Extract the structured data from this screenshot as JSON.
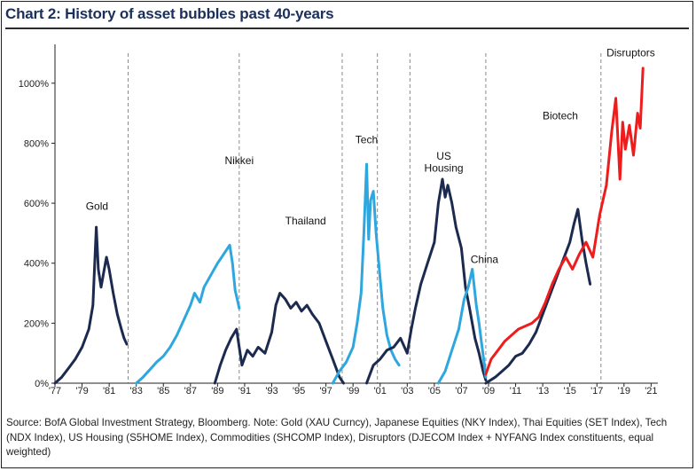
{
  "title": "Chart 2: History of asset bubbles past 40-years",
  "source_text": "Source:   BofA Global Investment Strategy, Bloomberg. Note: Gold (XAU Curncy), Japanese Equities (NKY Index), Thai Equities (SET Index), Tech (NDX Index), US Housing (S5HOME Index), Commodities (SHCOMP Index), Disruptors (DJECOM Index + NYFANG Index constituents, equal weighted)",
  "colors": {
    "dark": "#1b2a4e",
    "light": "#2ea6de",
    "red": "#ee1c1c",
    "title": "#1a2f5a"
  },
  "chart_data": {
    "type": "line",
    "title": "Chart 2: History of asset bubbles past 40-years",
    "xlabel": "",
    "ylabel": "",
    "xlim": [
      1977,
      2021.5
    ],
    "ylim": [
      0,
      1100
    ],
    "grid": false,
    "x_tick_labels": [
      "'77",
      "'79",
      "'81",
      "'83",
      "'85",
      "'87",
      "'89",
      "'91",
      "'93",
      "'95",
      "'97",
      "'99",
      "'01",
      "'03",
      "'05",
      "'07",
      "'09",
      "'11",
      "'13",
      "'15",
      "'17",
      "'19",
      "'21"
    ],
    "x_tick_values": [
      1977,
      1979,
      1981,
      1983,
      1985,
      1987,
      1989,
      1991,
      1993,
      1995,
      1997,
      1999,
      2001,
      2003,
      2005,
      2007,
      2009,
      2011,
      2013,
      2015,
      2017,
      2019,
      2021
    ],
    "y_ticks": [
      0,
      200,
      400,
      600,
      800,
      1000
    ],
    "y_tick_labels": [
      "0%",
      "200%",
      "400%",
      "600%",
      "800%",
      "1000%"
    ],
    "dividers": [
      1982.4,
      1990.6,
      1998.2,
      2000.8,
      2003.2,
      2008.8,
      2017.3
    ],
    "series": [
      {
        "name": "Gold",
        "color": "dark",
        "x": [
          1977,
          1977.5,
          1978,
          1978.5,
          1979,
          1979.5,
          1979.8,
          1980.05,
          1980.2,
          1980.4,
          1980.6,
          1980.8,
          1981,
          1981.3,
          1981.6,
          1981.9,
          1982.1,
          1982.3
        ],
        "y": [
          0,
          20,
          50,
          80,
          120,
          180,
          260,
          520,
          380,
          320,
          370,
          420,
          380,
          300,
          230,
          180,
          150,
          130
        ]
      },
      {
        "name": "Nikkei",
        "color": "light",
        "x": [
          1983,
          1983.5,
          1984,
          1984.5,
          1985,
          1985.5,
          1986,
          1986.5,
          1987,
          1987.3,
          1987.7,
          1988,
          1988.5,
          1989,
          1989.3,
          1989.6,
          1989.9,
          1990.1,
          1990.3,
          1990.5,
          1990.6
        ],
        "y": [
          0,
          20,
          45,
          70,
          90,
          120,
          160,
          210,
          260,
          300,
          270,
          320,
          360,
          400,
          420,
          440,
          460,
          400,
          310,
          270,
          250
        ]
      },
      {
        "name": "Thailand",
        "color": "dark",
        "x": [
          1988.8,
          1989.2,
          1989.6,
          1990,
          1990.4,
          1990.6,
          1990.8,
          1991.2,
          1991.6,
          1992,
          1992.5,
          1993,
          1993.3,
          1993.6,
          1994,
          1994.4,
          1994.8,
          1995.2,
          1995.6,
          1996,
          1996.5,
          1997,
          1997.5,
          1998,
          1998.3
        ],
        "y": [
          0,
          60,
          110,
          150,
          180,
          120,
          60,
          110,
          90,
          120,
          100,
          170,
          260,
          300,
          280,
          250,
          270,
          240,
          260,
          230,
          200,
          140,
          80,
          20,
          0
        ]
      },
      {
        "name": "Tech",
        "color": "light",
        "x": [
          1997.5,
          1998,
          1998.5,
          1999,
          1999.3,
          1999.6,
          1999.8,
          2000,
          2000.15,
          2000.3,
          2000.5,
          2000.7,
          2000.9,
          2001.2,
          2001.5,
          2001.8,
          2002.1,
          2002.4
        ],
        "y": [
          0,
          40,
          70,
          120,
          200,
          300,
          500,
          730,
          480,
          610,
          640,
          500,
          400,
          250,
          160,
          110,
          80,
          60
        ]
      },
      {
        "name": "US Housing",
        "color": "dark",
        "x": [
          2000,
          2000.5,
          2001,
          2001.5,
          2002,
          2002.5,
          2003,
          2003.3,
          2003.6,
          2004,
          2004.5,
          2005,
          2005.3,
          2005.6,
          2005.8,
          2006,
          2006.3,
          2006.6,
          2007,
          2007.3,
          2007.6,
          2008,
          2008.3,
          2008.6,
          2008.8
        ],
        "y": [
          0,
          60,
          80,
          110,
          120,
          150,
          100,
          180,
          250,
          330,
          400,
          470,
          600,
          680,
          620,
          660,
          600,
          520,
          450,
          320,
          250,
          150,
          100,
          40,
          10
        ]
      },
      {
        "name": "China",
        "color": "light",
        "x": [
          2005.3,
          2005.8,
          2006.3,
          2006.8,
          2007.2,
          2007.5,
          2007.8,
          2008.1,
          2008.3,
          2008.5,
          2008.7,
          2008.8
        ],
        "y": [
          0,
          40,
          110,
          180,
          280,
          320,
          380,
          260,
          200,
          130,
          60,
          20
        ]
      },
      {
        "name": "Biotech",
        "color": "dark",
        "x": [
          2008.8,
          2009.5,
          2010,
          2010.5,
          2011,
          2011.5,
          2012,
          2012.5,
          2013,
          2013.5,
          2014,
          2014.5,
          2015,
          2015.3,
          2015.6,
          2015.9,
          2016.2,
          2016.5
        ],
        "y": [
          0,
          20,
          40,
          60,
          90,
          100,
          130,
          170,
          230,
          290,
          350,
          410,
          470,
          530,
          580,
          480,
          400,
          330
        ]
      },
      {
        "name": "Disruptors",
        "color": "red",
        "x": [
          2008.8,
          2009.2,
          2009.7,
          2010.2,
          2010.7,
          2011.2,
          2011.7,
          2012.2,
          2012.7,
          2013.2,
          2013.7,
          2014.2,
          2014.7,
          2015.2,
          2015.7,
          2016.2,
          2016.7,
          2017.2,
          2017.7,
          2018.1,
          2018.4,
          2018.7,
          2018.9,
          2019.1,
          2019.4,
          2019.7,
          2020,
          2020.2,
          2020.4
        ],
        "y": [
          30,
          80,
          110,
          140,
          160,
          180,
          190,
          200,
          220,
          270,
          330,
          380,
          420,
          380,
          430,
          470,
          420,
          560,
          660,
          840,
          950,
          680,
          870,
          780,
          860,
          760,
          900,
          850,
          1050
        ]
      }
    ],
    "annotations": [
      {
        "text": "Gold",
        "x": 1980.1,
        "y": 578
      },
      {
        "text": "Nikkei",
        "x": 1990.6,
        "y": 730
      },
      {
        "text": "Thailand",
        "x": 1995.5,
        "y": 530
      },
      {
        "text": "Tech",
        "x": 2000.0,
        "y": 800
      },
      {
        "text": "US",
        "x": 2005.7,
        "y": 745
      },
      {
        "text": "Housing",
        "x": 2005.7,
        "y": 705
      },
      {
        "text": "China",
        "x": 2008.7,
        "y": 400
      },
      {
        "text": "Biotech",
        "x": 2014.3,
        "y": 880
      },
      {
        "text": "Disruptors",
        "x": 2019.5,
        "y": 1090
      }
    ]
  }
}
